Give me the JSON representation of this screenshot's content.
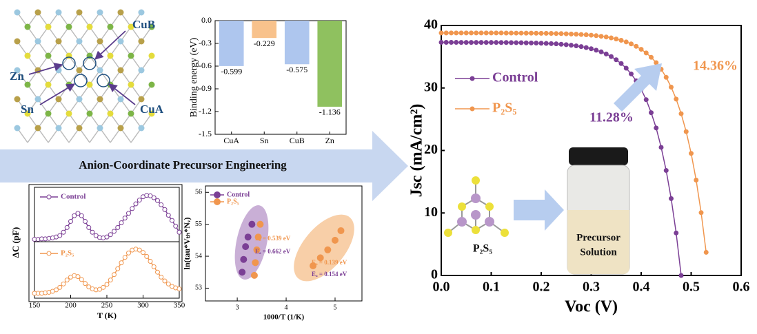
{
  "structure": {
    "labels": [
      "CuB",
      "Zn",
      "Sn",
      "CuA"
    ]
  },
  "banner": "Anion-Coordinate Precursor Engineering",
  "molecule": "P₂S₅",
  "vial": [
    "Precursor",
    "Solution"
  ],
  "chart_data": [
    {
      "type": "bar",
      "categories": [
        "CuA",
        "Sn",
        "CuB",
        "Zn"
      ],
      "values": [
        -0.599,
        -0.229,
        -0.575,
        -1.136
      ],
      "colors": [
        "#aec6ee",
        "#f8c28c",
        "#aec6ee",
        "#8fc15f"
      ],
      "ylabel": "Binding energy (eV)",
      "ylim": [
        -1.5,
        0
      ],
      "yticks": [
        {
          "value": 0,
          "label": "0.0"
        },
        -0.3,
        -0.6,
        -0.9,
        -1.2,
        -1.5
      ]
    },
    {
      "type": "line",
      "markers": "open",
      "legend": "upper left",
      "xlim": [
        150,
        350
      ],
      "ylim": [
        0,
        1.15
      ],
      "x": [
        150,
        155,
        160,
        165,
        170,
        175,
        180,
        185,
        190,
        195,
        200,
        205,
        210,
        215,
        220,
        225,
        230,
        235,
        240,
        245,
        250,
        255,
        260,
        265,
        270,
        275,
        280,
        285,
        290,
        295,
        300,
        305,
        310,
        315,
        320,
        325,
        330,
        335,
        340,
        345,
        350
      ],
      "series": [
        {
          "name": "Control",
          "color": "#7b3f95",
          "values": [
            0.05,
            0.05,
            0.06,
            0.06,
            0.07,
            0.08,
            0.1,
            0.13,
            0.2,
            0.3,
            0.43,
            0.55,
            0.6,
            0.55,
            0.43,
            0.3,
            0.2,
            0.13,
            0.09,
            0.08,
            0.1,
            0.15,
            0.22,
            0.3,
            0.4,
            0.5,
            0.6,
            0.7,
            0.8,
            0.88,
            0.95,
            0.98,
            0.97,
            0.93,
            0.87,
            0.78,
            0.68,
            0.56,
            0.45,
            0.33,
            0.2
          ]
        }
      ]
    },
    {
      "type": "line",
      "markers": "open",
      "legend": "upper left",
      "xlabel": "T (K)",
      "ylabel": "ΔC (pF)",
      "xlim": [
        150,
        350
      ],
      "ylim": [
        0,
        1.15
      ],
      "xticks": [
        150,
        200,
        250,
        300,
        350
      ],
      "x": [
        150,
        155,
        160,
        165,
        170,
        175,
        180,
        185,
        190,
        195,
        200,
        205,
        210,
        215,
        220,
        225,
        230,
        235,
        240,
        245,
        250,
        255,
        260,
        265,
        270,
        275,
        280,
        285,
        290,
        295,
        300,
        305,
        310,
        315,
        320,
        325,
        330,
        335,
        340,
        345,
        350
      ],
      "series": [
        {
          "name": "P₂S₅",
          "color": "#f0964e",
          "values": [
            0.1,
            0.1,
            0.1,
            0.11,
            0.12,
            0.14,
            0.17,
            0.22,
            0.29,
            0.37,
            0.43,
            0.46,
            0.44,
            0.38,
            0.3,
            0.23,
            0.19,
            0.17,
            0.18,
            0.22,
            0.28,
            0.37,
            0.48,
            0.6,
            0.72,
            0.83,
            0.92,
            0.98,
            1.0,
            0.98,
            0.93,
            0.85,
            0.75,
            0.64,
            0.53,
            0.43,
            0.35,
            0.29,
            0.24,
            0.21,
            0.19
          ]
        }
      ]
    },
    {
      "type": "scatter",
      "markers": "filled",
      "legend": "upper left",
      "xlabel": "1000/T (1/K)",
      "ylabel": "ln(tau*Vₜₕ*Nᵥ)",
      "xlim": [
        2.35,
        5.55
      ],
      "ylim": [
        52.6,
        56.2
      ],
      "xticks": [
        3,
        4,
        5
      ],
      "yticks": [
        53,
        54,
        55,
        56
      ],
      "series": [
        {
          "name": "Control",
          "color": "#7b3f95",
          "x": [
            3.1,
            3.13,
            3.17,
            3.22,
            3.3
          ],
          "values": [
            53.5,
            53.9,
            54.3,
            54.6,
            55.0
          ]
        },
        {
          "name": "P₂S₅",
          "color": "#f0964e",
          "x": [
            3.35,
            3.37,
            3.4,
            3.43,
            3.47,
            4.55,
            4.7,
            4.85,
            5.0,
            5.12
          ],
          "values": [
            53.4,
            53.8,
            54.2,
            54.6,
            55.0,
            53.7,
            53.95,
            54.2,
            54.5,
            54.8
          ]
        }
      ],
      "annotations": [
        {
          "text": "Eₐ = 0.539 eV",
          "color": "#f0964e"
        },
        {
          "text": "Eₐ = 0.662 eV",
          "color": "#7b3f95"
        },
        {
          "text": "Eₐ = 0.139 eV",
          "color": "#f0964e"
        },
        {
          "text": "Eₐ = 0.154 eV",
          "color": "#7b3f95"
        }
      ]
    },
    {
      "type": "line",
      "markers": "filled",
      "legend": "upper left",
      "xlabel": "Voc (V)",
      "ylabel": "Jsc (mA/cm²)",
      "xlim": [
        0,
        0.6
      ],
      "ylim": [
        0,
        40
      ],
      "xticks": [
        {
          "value": 0,
          "label": "0.0"
        },
        0.1,
        0.2,
        0.3,
        0.4,
        0.5,
        0.6
      ],
      "yticks": [
        0,
        10,
        20,
        30,
        40
      ],
      "series": [
        {
          "name": "Control",
          "color": "#7b3f95",
          "x": [
            0,
            0.01,
            0.02,
            0.03,
            0.04,
            0.05,
            0.06,
            0.07,
            0.08,
            0.09,
            0.1,
            0.11,
            0.12,
            0.13,
            0.14,
            0.15,
            0.16,
            0.17,
            0.18,
            0.19,
            0.2,
            0.21,
            0.22,
            0.23,
            0.24,
            0.25,
            0.26,
            0.27,
            0.28,
            0.29,
            0.3,
            0.31,
            0.32,
            0.33,
            0.34,
            0.35,
            0.36,
            0.37,
            0.38,
            0.39,
            0.4,
            0.41,
            0.42,
            0.43,
            0.44,
            0.45,
            0.46,
            0.47,
            0.48
          ],
          "values": [
            37.3,
            37.3,
            37.3,
            37.3,
            37.29,
            37.29,
            37.29,
            37.29,
            37.29,
            37.28,
            37.28,
            37.28,
            37.27,
            37.27,
            37.26,
            37.25,
            37.24,
            37.22,
            37.2,
            37.19,
            37.16,
            37.13,
            37.1,
            37.06,
            37.0,
            36.93,
            36.84,
            36.74,
            36.62,
            36.46,
            36.28,
            36.05,
            35.78,
            35.44,
            35.03,
            34.52,
            33.91,
            33.17,
            32.25,
            31.15,
            29.77,
            28.12,
            26.05,
            23.6,
            20.5,
            16.8,
            12.3,
            6.8,
            0.0
          ]
        },
        {
          "name": "P₂S₅",
          "color": "#f0964e",
          "x": [
            0,
            0.01,
            0.02,
            0.03,
            0.04,
            0.05,
            0.06,
            0.07,
            0.08,
            0.09,
            0.1,
            0.11,
            0.12,
            0.13,
            0.14,
            0.15,
            0.16,
            0.17,
            0.18,
            0.19,
            0.2,
            0.21,
            0.22,
            0.23,
            0.24,
            0.25,
            0.26,
            0.27,
            0.28,
            0.29,
            0.3,
            0.31,
            0.32,
            0.33,
            0.34,
            0.35,
            0.36,
            0.37,
            0.38,
            0.39,
            0.4,
            0.41,
            0.42,
            0.43,
            0.44,
            0.45,
            0.46,
            0.47,
            0.48,
            0.49,
            0.5,
            0.51,
            0.52,
            0.53
          ],
          "values": [
            38.8,
            38.8,
            38.8,
            38.8,
            38.8,
            38.8,
            38.8,
            38.8,
            38.8,
            38.8,
            38.8,
            38.8,
            38.8,
            38.79,
            38.79,
            38.78,
            38.78,
            38.77,
            38.77,
            38.76,
            38.75,
            38.74,
            38.73,
            38.71,
            38.7,
            38.67,
            38.64,
            38.61,
            38.56,
            38.51,
            38.45,
            38.37,
            38.27,
            38.16,
            38.02,
            37.84,
            37.63,
            37.37,
            37.05,
            36.67,
            36.19,
            35.61,
            34.91,
            34.05,
            33.0,
            31.71,
            30.14,
            28.22,
            25.88,
            23.02,
            19.53,
            15.26,
            10.05,
            3.7
          ]
        }
      ],
      "annotations": [
        {
          "text": "11.28%",
          "color": "#7b3f95"
        },
        {
          "text": "14.36%",
          "color": "#f0964e"
        }
      ]
    }
  ]
}
